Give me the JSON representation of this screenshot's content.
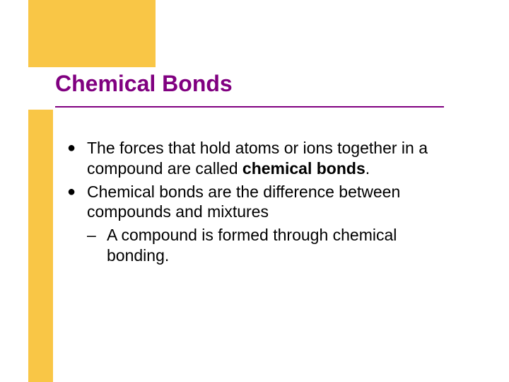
{
  "slide": {
    "title": "Chemical Bonds",
    "accent_color": "#f9c646",
    "title_color": "#800080",
    "title_fontsize": 32,
    "body_fontsize": 23,
    "body_color": "#000000",
    "bullets": [
      {
        "pre": "The forces that hold atoms or ions together in a compound are called ",
        "bold": "chemical bonds",
        "post": "."
      },
      {
        "pre": "Chemical bonds are the difference between compounds and mixtures",
        "bold": "",
        "post": ""
      }
    ],
    "subbullet": {
      "dash": "–",
      "text": "A compound is formed through chemical bonding."
    }
  }
}
